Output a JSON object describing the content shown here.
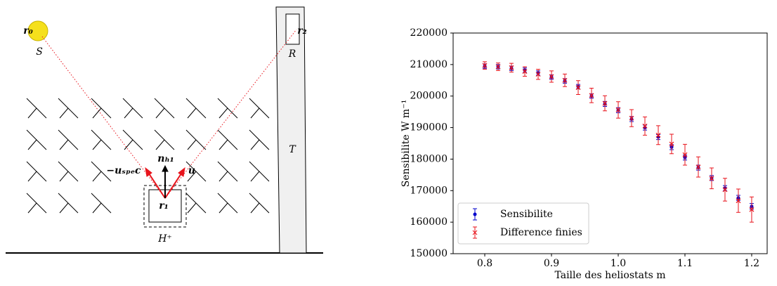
{
  "diagram": {
    "labels": {
      "r0": "r₀",
      "source": "S",
      "r2": "r₂",
      "receiver": "R",
      "tower": "T",
      "normal": "nₕ₁",
      "u_spec": "−uₛₚₑc",
      "u": "u",
      "r1": "r₁",
      "heliostat": "H⁺"
    }
  },
  "chart_data": {
    "type": "errorbar",
    "xlabel": "Taille des heliostats m",
    "ylabel": "Sensibilite W m⁻¹",
    "x": [
      0.8,
      0.82,
      0.84,
      0.86,
      0.88,
      0.9,
      0.92,
      0.94,
      0.96,
      0.98,
      1.0,
      1.02,
      1.04,
      1.06,
      1.08,
      1.1,
      1.12,
      1.14,
      1.16,
      1.18,
      1.2
    ],
    "series": [
      {
        "name": "Sensibilite",
        "color": "#0000cc",
        "marker": "dot",
        "values": [
          209500,
          209300,
          208800,
          208200,
          207300,
          206000,
          204800,
          203000,
          200000,
          197500,
          195500,
          192700,
          190000,
          187000,
          183800,
          180500,
          177300,
          174000,
          170800,
          167700,
          165000
        ],
        "errors": [
          700,
          700,
          700,
          700,
          700,
          700,
          700,
          700,
          700,
          800,
          800,
          800,
          800,
          800,
          800,
          800,
          800,
          800,
          800,
          800,
          900
        ]
      },
      {
        "name": "Difference finies",
        "color": "#e8141c",
        "marker": "x",
        "values": [
          209700,
          209300,
          209000,
          207800,
          206900,
          206200,
          205000,
          202700,
          200200,
          197700,
          195600,
          193000,
          190500,
          187600,
          184800,
          181400,
          177500,
          173900,
          170300,
          166800,
          164000
        ],
        "errors": [
          1200,
          1200,
          1400,
          1500,
          1600,
          1800,
          2000,
          2200,
          2300,
          2400,
          2600,
          2700,
          2900,
          3000,
          3100,
          3300,
          3200,
          3300,
          3600,
          3700,
          4000
        ]
      }
    ],
    "xlim": [
      0.7526,
      1.2232
    ],
    "xticks": [
      0.8,
      0.9,
      {
        "value": 1,
        "label": "1.0"
      },
      1.1,
      1.2
    ],
    "ylim": [
      150000,
      220000
    ],
    "yticks": [
      150000,
      160000,
      170000,
      180000,
      190000,
      200000,
      210000,
      220000
    ],
    "legend": "lower left"
  }
}
